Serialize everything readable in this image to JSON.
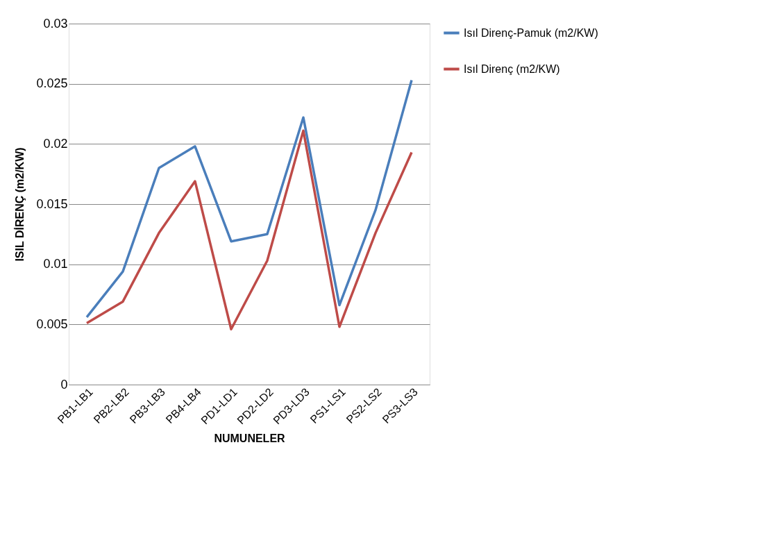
{
  "chart_data": {
    "type": "line",
    "xlabel": "NUMUNELER",
    "ylabel": "ISIL DİRENÇ (m2/KW)",
    "categories": [
      "PB1-LB1",
      "PB2-LB2",
      "PB3-LB3",
      "PB4-LB4",
      "PD1-LD1",
      "PD2-LD2",
      "PD3-LD3",
      "PS1-LS1",
      "PS2-LS2",
      "PS3-LS3"
    ],
    "series": [
      {
        "name": "Isıl Direnç-Pamuk (m2/KW)",
        "color": "#4a7ebb",
        "values": [
          0.0056,
          0.0094,
          0.018,
          0.0198,
          0.0119,
          0.0125,
          0.0222,
          0.0066,
          0.0145,
          0.0253
        ]
      },
      {
        "name": "Isıl Direnç (m2/KW)",
        "color": "#be4b48",
        "values": [
          0.0051,
          0.0069,
          0.0126,
          0.0169,
          0.0046,
          0.0103,
          0.0211,
          0.0048,
          0.0126,
          0.0193
        ]
      }
    ],
    "ylim": [
      0,
      0.03
    ],
    "yticks": [
      0,
      0.005,
      0.01,
      0.015,
      0.02,
      0.025,
      0.03
    ],
    "grid": "y",
    "legend": "right",
    "marker": "none",
    "line_style": "solid"
  }
}
